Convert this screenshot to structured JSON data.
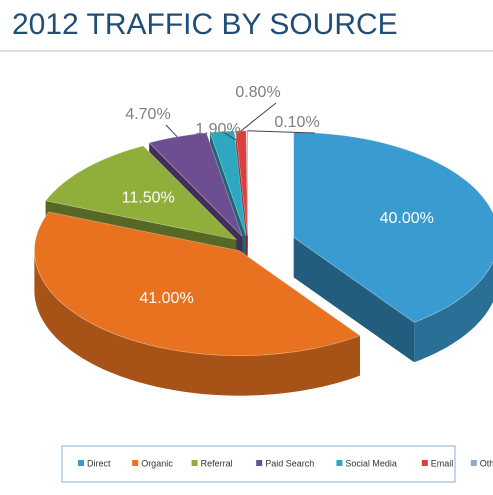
{
  "chart_data": {
    "type": "pie",
    "title": "2012 TRAFFIC BY SOURCE",
    "categories": [
      "Direct",
      "Organic",
      "Referral",
      "Paid Search",
      "Social Media",
      "Email",
      "Other"
    ],
    "values": [
      40,
      41,
      11.5,
      4.7,
      1.9,
      0.8,
      0.1
    ],
    "value_labels": [
      "40.00%",
      "41.00%",
      "11.50%",
      "4.70%",
      "1.90%",
      "0.80%",
      "0.10%"
    ],
    "colors": [
      "#3a9bd0",
      "#e8721f",
      "#8fae3a",
      "#6d4f91",
      "#2ea8c0",
      "#d9403d",
      "#8ea9c9"
    ],
    "legend": "bottom"
  }
}
